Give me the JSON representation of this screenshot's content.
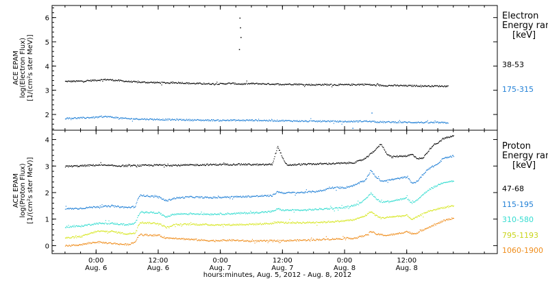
{
  "chart_data": [
    {
      "type": "scatter",
      "panel": "electron",
      "ylabel_lines": [
        "ACE EPAM",
        "log(Electron Flux)",
        "[1/(cm²s ster MeV)]"
      ],
      "ylim": [
        1.35,
        6.5
      ],
      "yticks": [
        2,
        3,
        4,
        5,
        6
      ],
      "legend_title": [
        "Electron",
        "Energy ran",
        "[keV]"
      ],
      "series": [
        {
          "name": "38-53",
          "color": "#000000",
          "points": [
            [
              -6,
              3.38
            ],
            [
              -3,
              3.39
            ],
            [
              0,
              3.43
            ],
            [
              2,
              3.46
            ],
            [
              4,
              3.42
            ],
            [
              6,
              3.38
            ],
            [
              8,
              3.35
            ],
            [
              10,
              3.34
            ],
            [
              12,
              3.33
            ],
            [
              14,
              3.32
            ],
            [
              16,
              3.33
            ],
            [
              18,
              3.3
            ],
            [
              20,
              3.29
            ],
            [
              22,
              3.28
            ],
            [
              24,
              3.28
            ],
            [
              26,
              3.3
            ],
            [
              28,
              3.27
            ],
            [
              30,
              3.29
            ],
            [
              32,
              3.28
            ],
            [
              34,
              3.27
            ],
            [
              36,
              3.26
            ],
            [
              38,
              3.27
            ],
            [
              40,
              3.25
            ],
            [
              42,
              3.24
            ],
            [
              44,
              3.25
            ],
            [
              46,
              3.24
            ],
            [
              48,
              3.24
            ],
            [
              50,
              3.25
            ],
            [
              52,
              3.26
            ],
            [
              54,
              3.22
            ],
            [
              56,
              3.21
            ],
            [
              58,
              3.21
            ],
            [
              60,
              3.2
            ],
            [
              62,
              3.2
            ],
            [
              64,
              3.19
            ],
            [
              66,
              3.19
            ],
            [
              68,
              3.18
            ]
          ],
          "spikes": [
            [
              27.7,
              6.0
            ],
            [
              27.8,
              5.6
            ],
            [
              27.9,
              5.2
            ],
            [
              27.6,
              4.7
            ]
          ]
        },
        {
          "name": "175-315",
          "color": "#1f7fd6",
          "points": [
            [
              -6,
              1.86
            ],
            [
              -3,
              1.87
            ],
            [
              0,
              1.9
            ],
            [
              2,
              1.93
            ],
            [
              4,
              1.88
            ],
            [
              6,
              1.84
            ],
            [
              8,
              1.83
            ],
            [
              10,
              1.82
            ],
            [
              12,
              1.81
            ],
            [
              14,
              1.8
            ],
            [
              16,
              1.8
            ],
            [
              18,
              1.79
            ],
            [
              20,
              1.78
            ],
            [
              22,
              1.78
            ],
            [
              24,
              1.77
            ],
            [
              26,
              1.78
            ],
            [
              28,
              1.77
            ],
            [
              30,
              1.78
            ],
            [
              32,
              1.77
            ],
            [
              34,
              1.76
            ],
            [
              36,
              1.76
            ],
            [
              38,
              1.75
            ],
            [
              40,
              1.74
            ],
            [
              42,
              1.73
            ],
            [
              44,
              1.74
            ],
            [
              46,
              1.73
            ],
            [
              48,
              1.72
            ],
            [
              50,
              1.73
            ],
            [
              52,
              1.74
            ],
            [
              54,
              1.71
            ],
            [
              56,
              1.7
            ],
            [
              58,
              1.7
            ],
            [
              60,
              1.69
            ],
            [
              62,
              1.69
            ],
            [
              64,
              1.68
            ],
            [
              66,
              1.68
            ],
            [
              68,
              1.67
            ]
          ],
          "spikes": [
            [
              53.2,
              2.08
            ],
            [
              49.5,
              1.45
            ]
          ]
        }
      ]
    },
    {
      "type": "scatter",
      "panel": "proton",
      "ylabel_lines": [
        "ACE EPAM",
        "log(Proton Flux)",
        "[1/(cm²s ster MeV)]"
      ],
      "ylim": [
        -0.3,
        4.35
      ],
      "yticks": [
        0,
        1,
        2,
        3,
        4
      ],
      "legend_title": [
        "Proton",
        "Energy ran",
        "[keV]"
      ],
      "series": [
        {
          "name": "47-68",
          "color": "#000000",
          "points": [
            [
              -6,
              3.0
            ],
            [
              -3,
              3.02
            ],
            [
              0,
              3.05
            ],
            [
              4,
              3.02
            ],
            [
              8,
              3.03
            ],
            [
              12,
              3.05
            ],
            [
              16,
              3.04
            ],
            [
              20,
              3.06
            ],
            [
              24,
              3.07
            ],
            [
              28,
              3.08
            ],
            [
              32,
              3.06
            ],
            [
              34,
              3.08
            ],
            [
              35,
              3.75
            ],
            [
              35.5,
              3.55
            ],
            [
              36,
              3.3
            ],
            [
              36.5,
              3.1
            ],
            [
              37,
              3.05
            ],
            [
              40,
              3.08
            ],
            [
              44,
              3.1
            ],
            [
              48,
              3.12
            ],
            [
              50,
              3.15
            ],
            [
              52,
              3.3
            ],
            [
              54,
              3.65
            ],
            [
              55,
              3.85
            ],
            [
              56,
              3.5
            ],
            [
              57,
              3.35
            ],
            [
              58,
              3.38
            ],
            [
              60,
              3.4
            ],
            [
              61,
              3.45
            ],
            [
              62,
              3.3
            ],
            [
              63,
              3.3
            ],
            [
              64,
              3.55
            ],
            [
              65,
              3.8
            ],
            [
              66,
              3.9
            ],
            [
              67,
              4.05
            ],
            [
              68,
              4.1
            ],
            [
              69,
              4.15
            ]
          ]
        },
        {
          "name": "115-195",
          "color": "#1f7fd6",
          "points": [
            [
              -6,
              1.4
            ],
            [
              -3,
              1.42
            ],
            [
              0,
              1.48
            ],
            [
              3,
              1.5
            ],
            [
              6,
              1.45
            ],
            [
              7.5,
              1.48
            ],
            [
              8,
              1.75
            ],
            [
              8.5,
              1.95
            ],
            [
              9,
              1.9
            ],
            [
              12,
              1.85
            ],
            [
              13.5,
              1.7
            ],
            [
              15,
              1.8
            ],
            [
              18,
              1.85
            ],
            [
              22,
              1.82
            ],
            [
              26,
              1.85
            ],
            [
              30,
              1.87
            ],
            [
              34,
              1.9
            ],
            [
              35,
              2.05
            ],
            [
              36,
              2.0
            ],
            [
              40,
              2.02
            ],
            [
              42,
              2.05
            ],
            [
              44,
              2.1
            ],
            [
              45,
              2.2
            ],
            [
              48,
              2.2
            ],
            [
              50,
              2.3
            ],
            [
              52,
              2.5
            ],
            [
              53,
              2.85
            ],
            [
              54,
              2.6
            ],
            [
              55,
              2.45
            ],
            [
              57,
              2.5
            ],
            [
              60,
              2.6
            ],
            [
              61,
              2.35
            ],
            [
              62,
              2.45
            ],
            [
              64,
              2.9
            ],
            [
              66,
              3.1
            ],
            [
              67,
              3.3
            ],
            [
              69,
              3.4
            ]
          ]
        },
        {
          "name": "310-580",
          "color": "#33dcd0",
          "points": [
            [
              -6,
              0.72
            ],
            [
              -3,
              0.75
            ],
            [
              0,
              0.85
            ],
            [
              3,
              0.85
            ],
            [
              6,
              0.8
            ],
            [
              7.5,
              0.85
            ],
            [
              8,
              1.1
            ],
            [
              8.5,
              1.3
            ],
            [
              9,
              1.28
            ],
            [
              12,
              1.25
            ],
            [
              13.5,
              1.1
            ],
            [
              15,
              1.2
            ],
            [
              18,
              1.22
            ],
            [
              22,
              1.2
            ],
            [
              26,
              1.22
            ],
            [
              30,
              1.25
            ],
            [
              34,
              1.3
            ],
            [
              35,
              1.4
            ],
            [
              36,
              1.35
            ],
            [
              40,
              1.35
            ],
            [
              44,
              1.4
            ],
            [
              48,
              1.45
            ],
            [
              50,
              1.55
            ],
            [
              52,
              1.75
            ],
            [
              53,
              2.0
            ],
            [
              54,
              1.8
            ],
            [
              55,
              1.65
            ],
            [
              57,
              1.7
            ],
            [
              60,
              1.8
            ],
            [
              61,
              1.6
            ],
            [
              62,
              1.75
            ],
            [
              64,
              2.1
            ],
            [
              66,
              2.3
            ],
            [
              67,
              2.4
            ],
            [
              69,
              2.45
            ]
          ]
        },
        {
          "name": "795-1193",
          "color": "#d6e61e",
          "points": [
            [
              -6,
              0.3
            ],
            [
              -3,
              0.35
            ],
            [
              0,
              0.55
            ],
            [
              3,
              0.55
            ],
            [
              6,
              0.45
            ],
            [
              7.5,
              0.5
            ],
            [
              8,
              0.75
            ],
            [
              8.5,
              0.9
            ],
            [
              9,
              0.88
            ],
            [
              12,
              0.85
            ],
            [
              13.5,
              0.7
            ],
            [
              15,
              0.8
            ],
            [
              18,
              0.82
            ],
            [
              22,
              0.8
            ],
            [
              26,
              0.8
            ],
            [
              30,
              0.82
            ],
            [
              34,
              0.85
            ],
            [
              35,
              0.9
            ],
            [
              36,
              0.88
            ],
            [
              40,
              0.88
            ],
            [
              44,
              0.9
            ],
            [
              48,
              0.95
            ],
            [
              50,
              1.0
            ],
            [
              52,
              1.15
            ],
            [
              53,
              1.3
            ],
            [
              54,
              1.15
            ],
            [
              55,
              1.05
            ],
            [
              57,
              1.1
            ],
            [
              60,
              1.15
            ],
            [
              61,
              1.0
            ],
            [
              62,
              1.1
            ],
            [
              64,
              1.3
            ],
            [
              66,
              1.4
            ],
            [
              67,
              1.45
            ],
            [
              69,
              1.5
            ]
          ]
        },
        {
          "name": "1060-1900",
          "color": "#ef8c1a",
          "points": [
            [
              -6,
              0.0
            ],
            [
              -3,
              0.05
            ],
            [
              0,
              0.15
            ],
            [
              3,
              0.1
            ],
            [
              6,
              0.05
            ],
            [
              7.5,
              0.15
            ],
            [
              8,
              0.35
            ],
            [
              8.5,
              0.45
            ],
            [
              9,
              0.42
            ],
            [
              12,
              0.4
            ],
            [
              13.5,
              0.3
            ],
            [
              15,
              0.3
            ],
            [
              18,
              0.25
            ],
            [
              22,
              0.2
            ],
            [
              26,
              0.22
            ],
            [
              30,
              0.18
            ],
            [
              34,
              0.2
            ],
            [
              36,
              0.2
            ],
            [
              40,
              0.22
            ],
            [
              44,
              0.25
            ],
            [
              48,
              0.28
            ],
            [
              50,
              0.3
            ],
            [
              52,
              0.4
            ],
            [
              53,
              0.55
            ],
            [
              54,
              0.45
            ],
            [
              56,
              0.4
            ],
            [
              58,
              0.45
            ],
            [
              60,
              0.55
            ],
            [
              61,
              0.45
            ],
            [
              62,
              0.5
            ],
            [
              64,
              0.7
            ],
            [
              66,
              0.85
            ],
            [
              67,
              0.95
            ],
            [
              69,
              1.05
            ]
          ]
        }
      ]
    }
  ],
  "x_axis": {
    "unit": "hours since 2012-08-06 00:00 UT",
    "xlim": [
      -8.5,
      77.5
    ],
    "ticks": [
      {
        "x": 0,
        "time": "0:00",
        "date": "Aug. 6"
      },
      {
        "x": 12,
        "time": "12:00",
        "date": "Aug. 6"
      },
      {
        "x": 24,
        "time": "0:00",
        "date": "Aug. 7"
      },
      {
        "x": 36,
        "time": "12:00",
        "date": "Aug. 7"
      },
      {
        "x": 48,
        "time": "0:00",
        "date": "Aug. 8"
      },
      {
        "x": 60,
        "time": "12:00",
        "date": "Aug. 8"
      }
    ],
    "label": "hours:minutes, Aug.  5, 2012 - Aug.  8, 2012"
  }
}
